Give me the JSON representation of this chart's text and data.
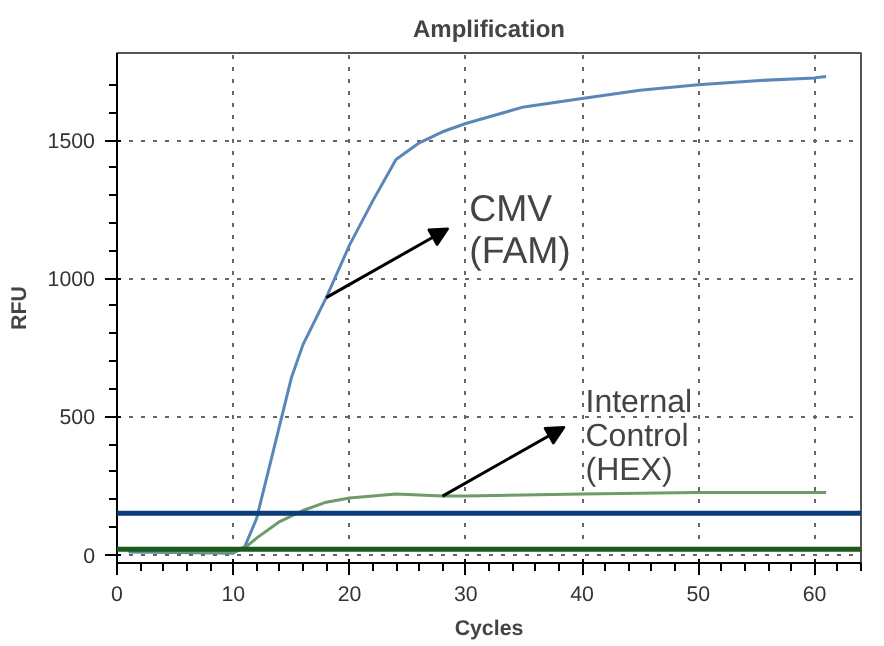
{
  "chart_data": {
    "type": "line",
    "title": "Amplification",
    "xlabel": "Cycles",
    "ylabel": "RFU",
    "xlim": [
      0,
      64
    ],
    "ylim": [
      -30,
      1815
    ],
    "xticks": [
      0,
      10,
      20,
      30,
      40,
      50,
      60
    ],
    "yticks": [
      0,
      500,
      1000,
      1500
    ],
    "grid": true,
    "line_style": "solid",
    "series": [
      {
        "color": "#5b87b8",
        "x": [
          1,
          5,
          10,
          11,
          12,
          13,
          14,
          15,
          16,
          18,
          20,
          22,
          24,
          26,
          28,
          30,
          35,
          40,
          45,
          50,
          55,
          60,
          61
        ],
        "values": [
          10,
          8,
          5,
          30,
          130,
          300,
          470,
          640,
          760,
          930,
          1120,
          1280,
          1430,
          1490,
          1530,
          1560,
          1620,
          1650,
          1680,
          1700,
          1715,
          1725,
          1730
        ]
      },
      {
        "color": "#6f9a6a",
        "x": [
          1,
          5,
          10,
          11,
          12,
          14,
          16,
          18,
          20,
          24,
          28,
          30,
          40,
          50,
          61
        ],
        "values": [
          15,
          12,
          10,
          25,
          60,
          120,
          160,
          190,
          205,
          220,
          212,
          212,
          220,
          225,
          225
        ]
      }
    ],
    "ref_lines": [
      {
        "axis": "y",
        "value": 150,
        "color": "#0b3d7a"
      },
      {
        "axis": "y",
        "value": 20,
        "color": "#1a5a1a"
      }
    ],
    "annotations": [
      {
        "text": "CMV\n(FAM)",
        "x": 18,
        "y": 930
      },
      {
        "text": "Internal\nControl\n(HEX)",
        "x": 28,
        "y": 212
      }
    ]
  }
}
